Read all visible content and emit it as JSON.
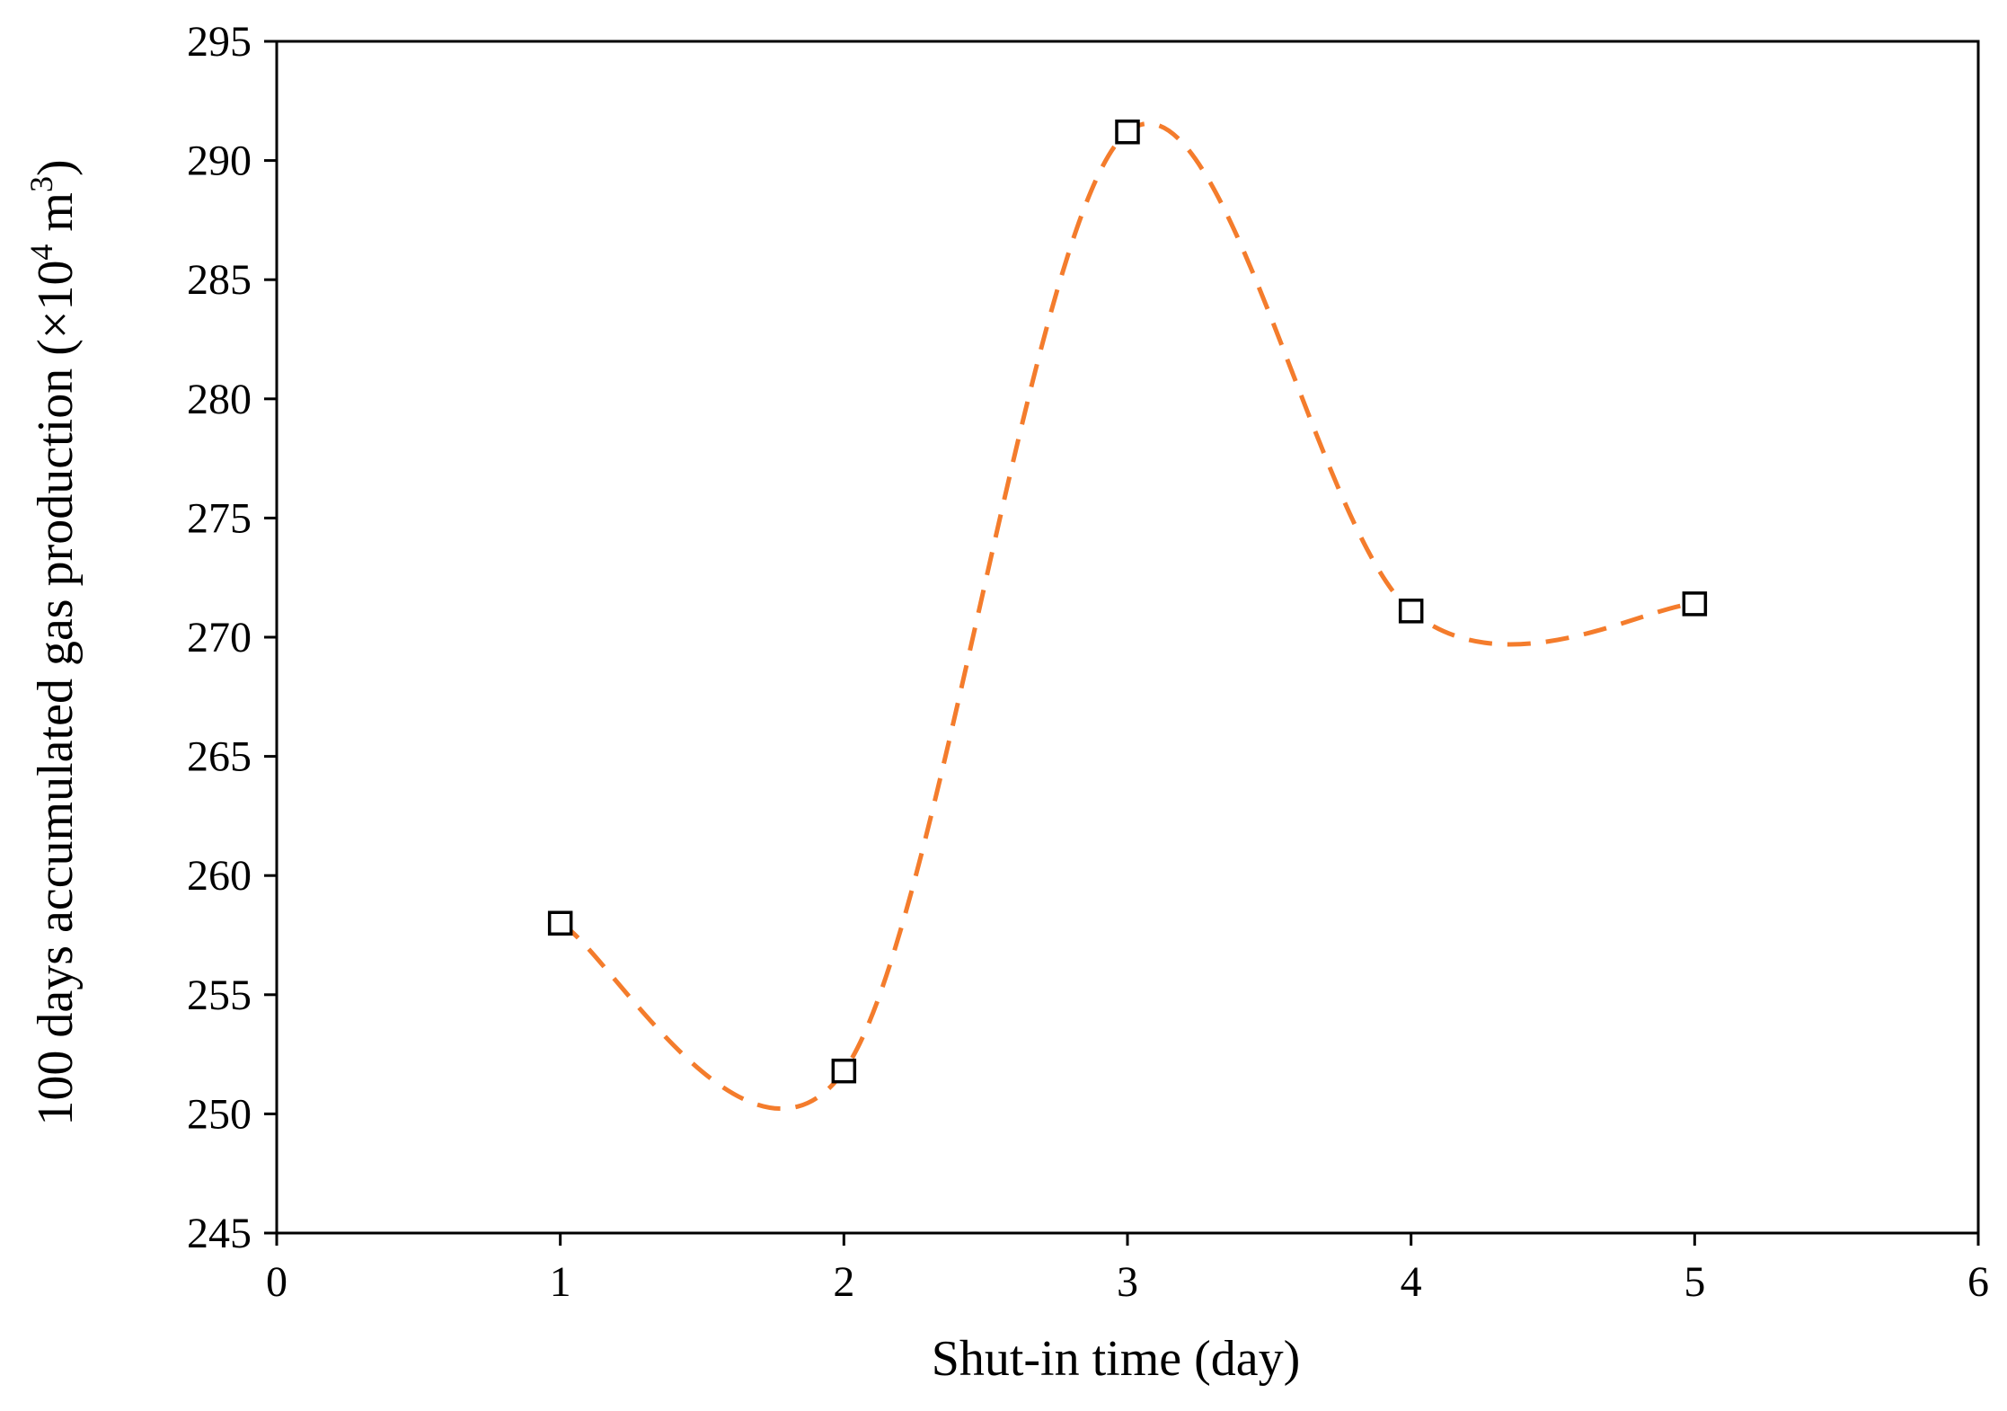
{
  "chart_data": {
    "type": "scatter",
    "xlabel": "Shut-in time (day)",
    "ylabel": {
      "prefix": "100 days accumulated gas production (×10",
      "sup1": "4",
      "mid": " m",
      "sup2": "3",
      "suffix": ")"
    },
    "xlim": [
      0,
      6
    ],
    "ylim": [
      245,
      295
    ],
    "x_ticks": [
      0,
      1,
      2,
      3,
      4,
      5,
      6
    ],
    "y_ticks": [
      245,
      250,
      255,
      260,
      265,
      270,
      275,
      280,
      285,
      290,
      295
    ],
    "grid": false,
    "legend": "none",
    "series": [
      {
        "marker": "square",
        "marker_color": "#000000",
        "line_style": "dashed-smooth",
        "line_color": "#F47C2C",
        "x": [
          1,
          2,
          3,
          4,
          5
        ],
        "y": [
          258.0,
          251.8,
          291.2,
          271.1,
          271.4
        ]
      }
    ]
  }
}
